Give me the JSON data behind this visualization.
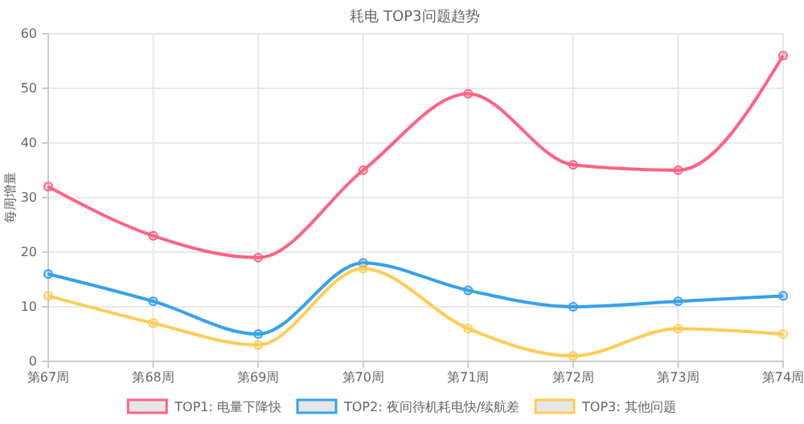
{
  "chart_data": {
    "type": "line",
    "title": "耗电 TOP3问题趋势",
    "ylabel": "每周增量",
    "categories": [
      "第67周",
      "第68周",
      "第69周",
      "第70周",
      "第71周",
      "第72周",
      "第73周",
      "第74周"
    ],
    "series": [
      {
        "name": "TOP1: 电量下降快",
        "color": "#ff6384",
        "values": [
          32,
          23,
          19,
          35,
          49,
          36,
          35,
          56
        ]
      },
      {
        "name": "TOP2: 夜间待机耗电快/续航差",
        "color": "#36a2eb",
        "values": [
          16,
          11,
          5,
          18,
          13,
          10,
          11,
          12
        ]
      },
      {
        "name": "TOP3: 其他问题",
        "color": "#ffcd56",
        "values": [
          12,
          7,
          3,
          17,
          6,
          1,
          6,
          5
        ]
      }
    ],
    "ylim": [
      0,
      60
    ],
    "yticks": [
      0,
      10,
      20,
      30,
      40,
      50,
      60
    ],
    "grid": true,
    "legend": "bottom",
    "marker": "circle",
    "line_style": "solid"
  }
}
